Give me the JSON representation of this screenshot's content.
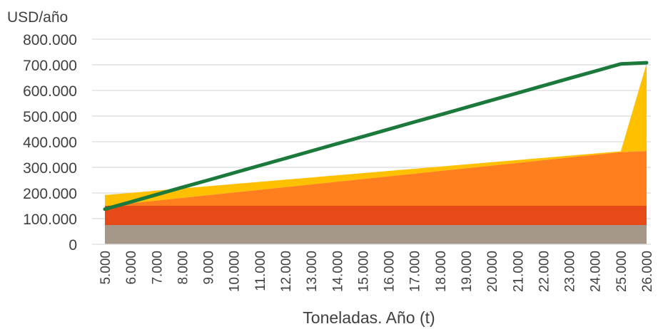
{
  "chart_data": {
    "type": "area",
    "ylabel": "USD/año",
    "xlabel": "Toneladas. Año (t)",
    "x": [
      "5.000",
      "6.000",
      "7.000",
      "8.000",
      "9.000",
      "10.000",
      "11.000",
      "12.000",
      "13.000",
      "14.000",
      "15.000",
      "16.000",
      "17.000",
      "18.000",
      "19.000",
      "20.000",
      "21.000",
      "22.000",
      "23.000",
      "24.000",
      "25.000",
      "26.000"
    ],
    "ylim": [
      0,
      800000
    ],
    "yticks": [
      0,
      100000,
      200000,
      300000,
      400000,
      500000,
      600000,
      700000,
      800000
    ],
    "ytick_labels": [
      "0",
      "100.000",
      "200.000",
      "300.000",
      "400.000",
      "500.000",
      "600.000",
      "700.000",
      "800.000"
    ],
    "grid": true,
    "stacked_areas": [
      {
        "color": "#A69888",
        "values": [
          75000,
          75000,
          75000,
          75000,
          75000,
          75000,
          75000,
          75000,
          75000,
          75000,
          75000,
          75000,
          75000,
          75000,
          75000,
          75000,
          75000,
          75000,
          75000,
          75000,
          75000,
          75000
        ]
      },
      {
        "color": "#E64A19",
        "values": [
          75000,
          75000,
          75000,
          75000,
          75000,
          75000,
          75000,
          75000,
          75000,
          75000,
          75000,
          75000,
          75000,
          75000,
          75000,
          75000,
          75000,
          75000,
          75000,
          75000,
          75000,
          75000
        ]
      },
      {
        "color": "#FF7F1E",
        "values": [
          0,
          10000,
          20500,
          31000,
          41500,
          52000,
          62500,
          73000,
          83500,
          94000,
          104500,
          115000,
          125500,
          136000,
          146500,
          157000,
          167500,
          178000,
          188500,
          199000,
          209500,
          214000
        ]
      },
      {
        "color": "#FFC000",
        "values": [
          42000,
          40500,
          39000,
          37000,
          35000,
          33000,
          31000,
          29000,
          27000,
          25000,
          23000,
          21000,
          19000,
          17000,
          15000,
          13000,
          11000,
          9000,
          7000,
          5000,
          3000,
          341000
        ]
      }
    ],
    "lines": [
      {
        "color": "#1B7A3B",
        "values": [
          137000,
          165000,
          193500,
          222000,
          250000,
          278500,
          307000,
          335000,
          363500,
          392000,
          420000,
          448500,
          477000,
          505000,
          533500,
          562000,
          590000,
          618500,
          647000,
          675000,
          703500,
          708000
        ]
      }
    ]
  }
}
